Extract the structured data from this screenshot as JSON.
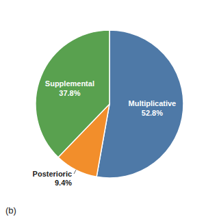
{
  "chart_data": {
    "type": "pie",
    "categories": [
      "Multiplicative",
      "Posterioric",
      "Supplemental"
    ],
    "values": [
      52.8,
      9.4,
      37.8
    ],
    "value_labels": [
      "52.8%",
      "9.4%",
      "37.8%"
    ],
    "data_labels": true,
    "annotations": [
      "(b)"
    ]
  }
}
